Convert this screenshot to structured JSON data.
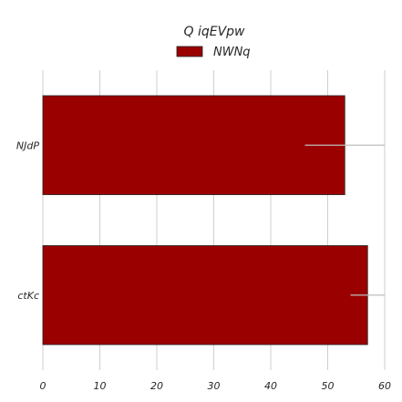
{
  "chart_data": {
    "type": "bar",
    "orientation": "horizontal",
    "title": "Q iqEVpw",
    "xlabel": "",
    "ylabel": "",
    "categories": [
      "NJdP",
      "ctKc"
    ],
    "series": [
      {
        "name": "NWNq",
        "values": [
          53,
          57
        ],
        "errors": [
          7,
          3
        ],
        "color": "#9b0000"
      }
    ],
    "xlim": [
      0,
      60
    ],
    "xticks": [
      0,
      10,
      20,
      30,
      40,
      50,
      60
    ],
    "grid": true,
    "legend_position": "top-center"
  }
}
